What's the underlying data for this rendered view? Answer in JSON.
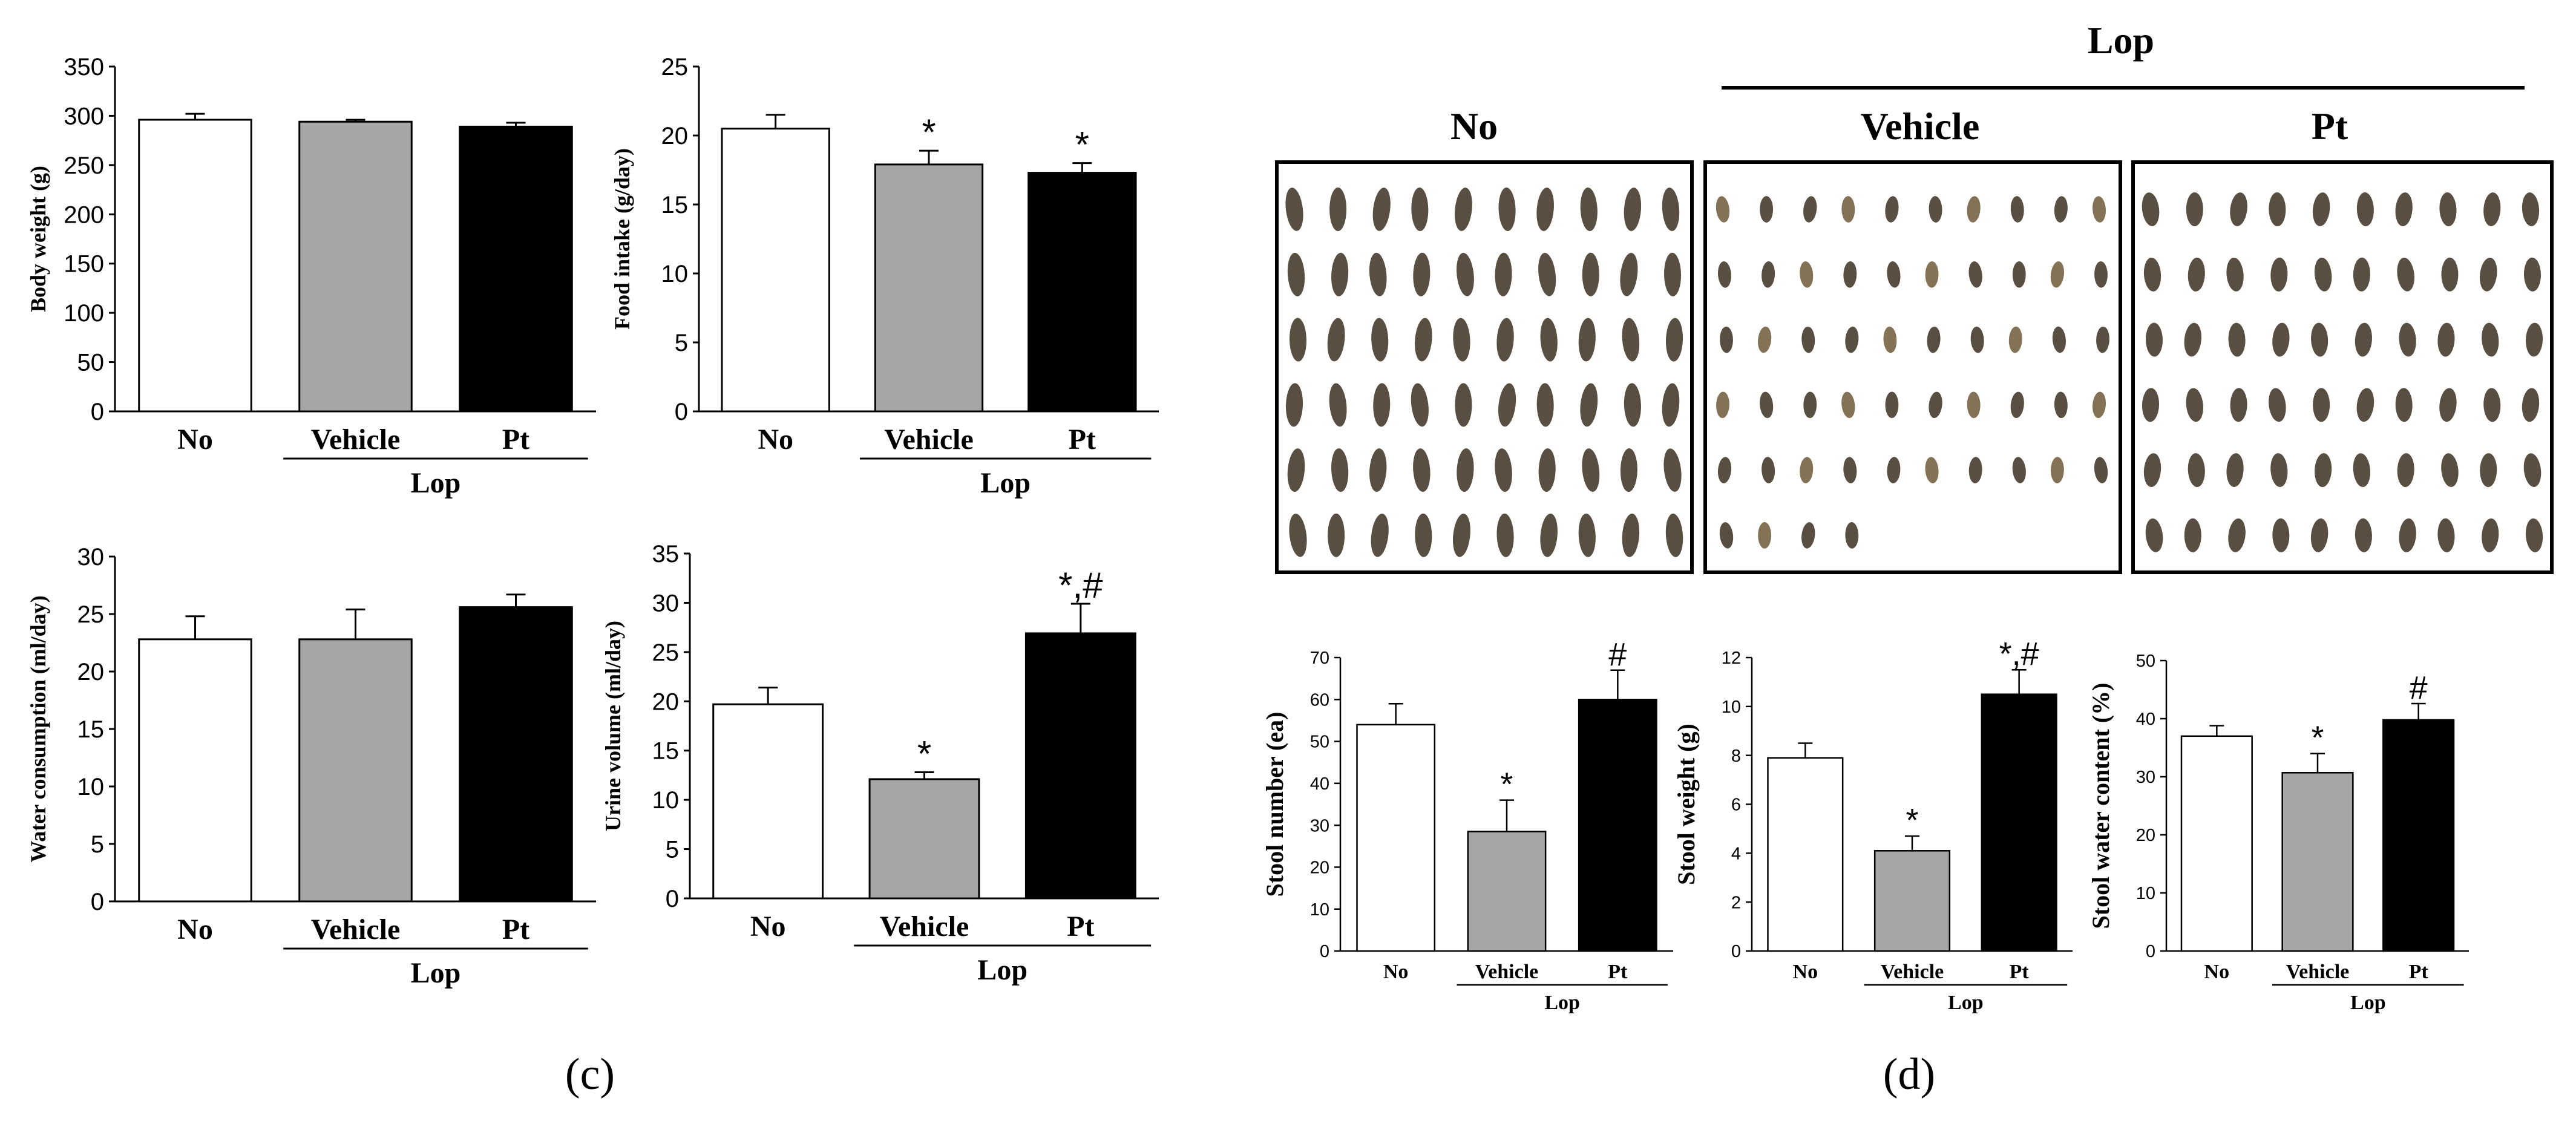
{
  "panel_labels": {
    "c": "(c)",
    "d": "(d)"
  },
  "header": {
    "lop": "Lop",
    "groups": [
      "No",
      "Vehicle",
      "Pt"
    ]
  },
  "colors": {
    "No": "#ffffff",
    "Vehicle": "#a6a6a6",
    "Pt": "#000000",
    "pellet": "#4a3f31",
    "pellet_light": "#7a6648"
  },
  "photo_panels": [
    {
      "name": "No",
      "rows": [
        10,
        10,
        10,
        10,
        10,
        10
      ]
    },
    {
      "name": "Vehicle",
      "rows": [
        10,
        10,
        10,
        10,
        10,
        4
      ]
    },
    {
      "name": "Pt",
      "rows": [
        10,
        10,
        10,
        10,
        10,
        10
      ]
    }
  ],
  "chart_data": [
    {
      "id": "body_weight",
      "type": "bar",
      "title": "",
      "categories": [
        "No",
        "Vehicle",
        "Pt"
      ],
      "values": [
        296,
        294,
        289
      ],
      "errors": [
        6,
        2,
        4
      ],
      "marks": [
        "",
        "",
        ""
      ],
      "ylabel": "Body weight (g)",
      "ylim": [
        0,
        350
      ],
      "yticks": [
        0,
        50,
        100,
        150,
        200,
        250,
        300,
        350
      ],
      "group_label": "Lop"
    },
    {
      "id": "food_intake",
      "type": "bar",
      "title": "",
      "categories": [
        "No",
        "Vehicle",
        "Pt"
      ],
      "values": [
        20.5,
        17.9,
        17.3
      ],
      "errors": [
        1.0,
        1.0,
        0.7
      ],
      "marks": [
        "",
        "*",
        "*"
      ],
      "ylabel": "Food intake (g/day)",
      "ylim": [
        0,
        25
      ],
      "yticks": [
        0,
        5,
        10,
        15,
        20,
        25
      ],
      "group_label": "Lop"
    },
    {
      "id": "water_consumption",
      "type": "bar",
      "title": "",
      "categories": [
        "No",
        "Vehicle",
        "Pt"
      ],
      "values": [
        22.8,
        22.8,
        25.6
      ],
      "errors": [
        2.0,
        2.6,
        1.1
      ],
      "marks": [
        "",
        "",
        ""
      ],
      "ylabel": "Water consumption (ml/day)",
      "ylim": [
        0,
        30
      ],
      "yticks": [
        0,
        5,
        10,
        15,
        20,
        25,
        30
      ],
      "group_label": "Lop"
    },
    {
      "id": "urine_volume",
      "type": "bar",
      "title": "",
      "categories": [
        "No",
        "Vehicle",
        "Pt"
      ],
      "values": [
        19.7,
        12.1,
        26.9
      ],
      "errors": [
        1.7,
        0.7,
        3.0
      ],
      "marks": [
        "",
        "*",
        "*,#"
      ],
      "ylabel": "Urine volume (ml/day)",
      "ylim": [
        0,
        35
      ],
      "yticks": [
        0,
        5,
        10,
        15,
        20,
        25,
        30,
        35
      ],
      "group_label": "Lop"
    },
    {
      "id": "stool_number",
      "type": "bar",
      "title": "",
      "categories": [
        "No",
        "Vehicle",
        "Pt"
      ],
      "values": [
        54,
        28.5,
        60
      ],
      "errors": [
        5,
        7.5,
        7
      ],
      "marks": [
        "",
        "*",
        "#"
      ],
      "ylabel": "Stool number (ea)",
      "ylim": [
        0,
        70
      ],
      "yticks": [
        0,
        10,
        20,
        30,
        40,
        50,
        60,
        70
      ],
      "group_label": "Lop"
    },
    {
      "id": "stool_weight",
      "type": "bar",
      "title": "",
      "categories": [
        "No",
        "Vehicle",
        "Pt"
      ],
      "values": [
        7.9,
        4.1,
        10.5
      ],
      "errors": [
        0.6,
        0.6,
        1.0
      ],
      "marks": [
        "",
        "*",
        "*,#"
      ],
      "ylabel": "Stool weight (g)",
      "ylim": [
        0,
        12
      ],
      "yticks": [
        0,
        2,
        4,
        6,
        8,
        10,
        12
      ],
      "group_label": "Lop"
    },
    {
      "id": "stool_water_content",
      "type": "bar",
      "title": "",
      "categories": [
        "No",
        "Vehicle",
        "Pt"
      ],
      "values": [
        37,
        30.7,
        39.8
      ],
      "errors": [
        1.8,
        3.3,
        2.8
      ],
      "marks": [
        "",
        "*",
        "#"
      ],
      "ylabel": "Stool water content (%)",
      "ylim": [
        0,
        50
      ],
      "yticks": [
        0,
        10,
        20,
        30,
        40,
        50
      ],
      "group_label": "Lop"
    }
  ]
}
